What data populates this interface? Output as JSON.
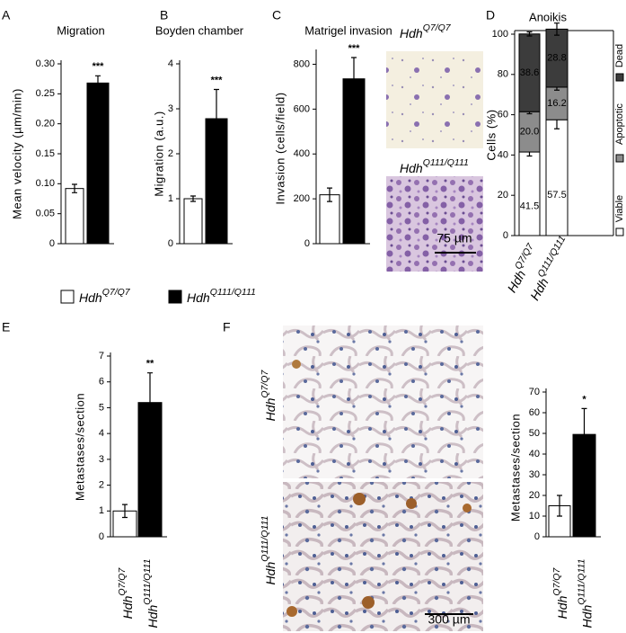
{
  "panel_letters": [
    "A",
    "B",
    "C",
    "D",
    "E",
    "F"
  ],
  "legend": [
    {
      "gene": "Hdh",
      "allele": "Q7/Q7",
      "color": "#ffffff"
    },
    {
      "gene": "Hdh",
      "allele": "Q111/Q111",
      "color": "#000000"
    }
  ],
  "chart_data": [
    {
      "type": "bar",
      "title": "Migration",
      "y_label": "Mean velocity (µm/min)",
      "values": [
        0.092,
        0.268
      ],
      "errors": [
        0.007,
        0.012
      ],
      "colors": [
        "#ffffff",
        "#000000"
      ],
      "annotation": "***",
      "ylim": [
        0,
        0.3
      ],
      "yticks": [
        0,
        0.05,
        {
          "value": 0.1,
          "label": "0.10"
        },
        0.15,
        {
          "value": 0.2,
          "label": "0.20"
        },
        0.25,
        {
          "value": 0.3,
          "label": "0.30"
        }
      ]
    },
    {
      "type": "bar",
      "title": "Boyden chamber",
      "y_label": "Migration (a.u.)",
      "values": [
        1.0,
        2.78
      ],
      "errors": [
        0.06,
        0.65
      ],
      "colors": [
        "#ffffff",
        "#000000"
      ],
      "annotation": "***",
      "ylim": [
        0,
        4
      ],
      "yticks": [
        0,
        1,
        2,
        3,
        4
      ]
    },
    {
      "type": "bar",
      "title": "Matrigel invasion",
      "y_label": "Invasion (cells/field)",
      "values": [
        218,
        735
      ],
      "errors": [
        30,
        95
      ],
      "colors": [
        "#ffffff",
        "#000000"
      ],
      "annotation": "***",
      "ylim": [
        0,
        850
      ],
      "yticks": [
        0,
        200,
        400,
        600,
        800
      ],
      "images": [
        {
          "gene": "Hdh",
          "allele": "Q7/Q7"
        },
        {
          "gene": "Hdh",
          "allele": "Q111/Q111"
        }
      ],
      "scale_bar": "75 µm"
    },
    {
      "type": "stacked_bar",
      "title": "Anoikis",
      "y_label": "Cells (%)",
      "category_prefix": "Hdh",
      "categories": [
        "Q7/Q7",
        "Q111/Q111"
      ],
      "series": [
        {
          "name": "Viable",
          "color": "#ffffff",
          "values": [
            41.5,
            57.5
          ],
          "errors": [
            2,
            4.5
          ]
        },
        {
          "name": "Apoptotic",
          "color": "#8c8c8c",
          "values": [
            20,
            16.2
          ],
          "value_labels": [
            "20.0",
            "16.2"
          ],
          "errors": [
            1,
            1.5
          ]
        },
        {
          "name": "Dead",
          "color": "#3c3c3c",
          "values": [
            38.6,
            28.8
          ],
          "errors": [
            1,
            3
          ]
        }
      ],
      "ylim": [
        0,
        100
      ],
      "yticks": [
        0,
        20,
        40,
        60,
        80,
        100
      ]
    },
    {
      "type": "bar",
      "y_label": "Metastases/section",
      "category_prefix": "Hdh",
      "categories": [
        "Q7/Q7",
        "Q111/Q111"
      ],
      "values": [
        1.0,
        5.2
      ],
      "errors": [
        0.25,
        1.15
      ],
      "colors": [
        "#ffffff",
        "#000000"
      ],
      "annotation": "**",
      "ylim": [
        0,
        7
      ],
      "yticks": [
        0,
        1,
        2,
        3,
        4,
        5,
        6,
        7
      ]
    },
    {
      "type": "bar",
      "y_label": "Metastases/section",
      "category_prefix": "Hdh",
      "categories": [
        "Q7/Q7",
        "Q111/Q111"
      ],
      "values": [
        15,
        49.5
      ],
      "errors": [
        5,
        12.5
      ],
      "colors": [
        "#ffffff",
        "#000000"
      ],
      "annotation": "*",
      "ylim": [
        0,
        70
      ],
      "yticks": [
        0,
        10,
        20,
        30,
        40,
        50,
        60,
        70
      ],
      "images": [
        {
          "gene": "Hdh",
          "allele": "Q7/Q7"
        },
        {
          "gene": "Hdh",
          "allele": "Q111/Q111"
        }
      ],
      "scale_bar": "300 µm"
    }
  ]
}
